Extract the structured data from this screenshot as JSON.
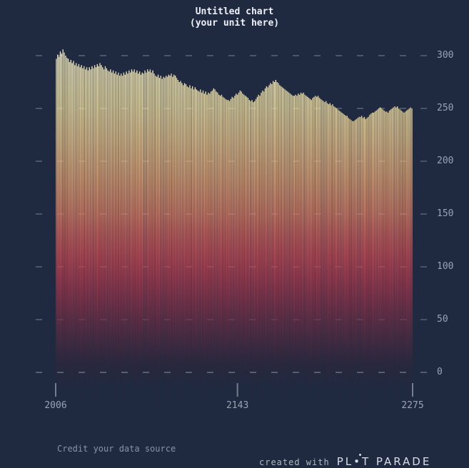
{
  "title": {
    "line1": "Untitled chart",
    "line2": "(your unit here)"
  },
  "colors": {
    "background": "#1f2940",
    "grid": "#97a0b2",
    "axis_text": "#9aa3b4",
    "title_text": "#edf1f7",
    "credit_text": "#8a93a4",
    "created_text": "#b0b8c6",
    "brand_text": "#d8dee8",
    "bar_top": "#f8f0c6",
    "bar_mid": "#c64a53",
    "bar_bottom": "#2a283c"
  },
  "y_axis": {
    "ticks": [
      300,
      250,
      200,
      150,
      100,
      50,
      0
    ]
  },
  "x_axis": {
    "tick_years": [
      2006,
      2143,
      2275
    ]
  },
  "footer": {
    "credit": "Credit your data source",
    "created_with": "created with",
    "brand": "PL•T PARADE"
  },
  "chart_data": {
    "type": "bar",
    "title": "Untitled chart",
    "subtitle": "(your unit here)",
    "xlabel": "",
    "ylabel": "",
    "x_start": 2006,
    "x_end": 2275,
    "y_ticks": [
      0,
      50,
      100,
      150,
      200,
      250,
      300
    ],
    "ylim_displayed": [
      0,
      300
    ],
    "grid": "dashed-horizontal",
    "legend": "none",
    "values": [
      297,
      301,
      299,
      304,
      302,
      306,
      303,
      300,
      298,
      297,
      294,
      296,
      293,
      295,
      291,
      293,
      290,
      292,
      289,
      291,
      288,
      290,
      287,
      289,
      286,
      289,
      287,
      290,
      288,
      291,
      289,
      292,
      290,
      293,
      291,
      289,
      287,
      290,
      288,
      286,
      285,
      287,
      284,
      286,
      283,
      285,
      282,
      284,
      281,
      283,
      281,
      284,
      282,
      285,
      283,
      286,
      284,
      287,
      285,
      287,
      284,
      286,
      283,
      285,
      282,
      284,
      283,
      286,
      284,
      287,
      285,
      287,
      284,
      286,
      283,
      281,
      280,
      282,
      279,
      281,
      278,
      280,
      279,
      281,
      280,
      282,
      281,
      283,
      280,
      282,
      281,
      279,
      277,
      275,
      276,
      274,
      272,
      274,
      273,
      271,
      270,
      272,
      269,
      271,
      268,
      270,
      268,
      267,
      266,
      268,
      265,
      267,
      264,
      266,
      263,
      265,
      264,
      266,
      267,
      269,
      268,
      266,
      265,
      263,
      262,
      263,
      261,
      260,
      259,
      258,
      258,
      257,
      259,
      261,
      260,
      262,
      264,
      263,
      265,
      267,
      266,
      264,
      263,
      262,
      261,
      260,
      258,
      257,
      258,
      256,
      257,
      259,
      261,
      263,
      262,
      265,
      267,
      266,
      269,
      271,
      270,
      272,
      274,
      273,
      276,
      275,
      277,
      275,
      274,
      272,
      271,
      270,
      269,
      268,
      267,
      266,
      265,
      264,
      263,
      262,
      262,
      263,
      262,
      264,
      263,
      265,
      264,
      265,
      263,
      262,
      261,
      260,
      259,
      258,
      260,
      261,
      262,
      261,
      262,
      260,
      259,
      258,
      257,
      256,
      257,
      255,
      254,
      255,
      253,
      254,
      252,
      251,
      250,
      249,
      248,
      247,
      246,
      245,
      244,
      243,
      243,
      241,
      240,
      239,
      238,
      238,
      239,
      240,
      241,
      242,
      242,
      243,
      241,
      242,
      240,
      241,
      242,
      244,
      245,
      246,
      246,
      247,
      248,
      249,
      250,
      251,
      250,
      249,
      248,
      247,
      247,
      246,
      248,
      249,
      250,
      251,
      252,
      251,
      252,
      250,
      249,
      248,
      247,
      246,
      247,
      248,
      249,
      250,
      251,
      250
    ],
    "lows": [
      -6,
      -12,
      -4,
      -9,
      -15,
      -5,
      -11,
      -34,
      -13,
      -3,
      -8,
      -14,
      -6,
      -28,
      -4,
      -12,
      -8,
      -5,
      -9,
      -41,
      -6,
      -12,
      -4,
      -9,
      -15,
      -5,
      -11,
      -25,
      -13,
      -3,
      -8,
      -37,
      -6,
      -10,
      -4,
      -12,
      -8,
      -5,
      -9,
      -7,
      -6,
      -12,
      -4,
      -9,
      -30,
      -5,
      -11,
      -7,
      -13,
      -3,
      -8,
      -14,
      -26,
      -10,
      -4,
      -12,
      -8,
      -5,
      -9,
      -7,
      -44,
      -12,
      -4,
      -9,
      -15,
      -5,
      -11,
      -7,
      -29,
      -3,
      -8,
      -14,
      -6,
      -10,
      -4,
      -12,
      -8,
      -35,
      -9,
      -7,
      -6,
      -12,
      -4,
      -9,
      -15,
      -27,
      -11,
      -7,
      -13,
      -3,
      -8,
      -14,
      -6,
      -39,
      -4,
      -12,
      -8,
      -5,
      -9,
      -7,
      -6,
      -31,
      -4,
      -9,
      -15,
      -5,
      -11,
      -7,
      -13,
      -3,
      -8,
      -14,
      -26,
      -10,
      -4,
      -12,
      -8,
      -5,
      -42,
      -7,
      -6,
      -12,
      -4,
      -9,
      -15,
      -5,
      -11,
      -28,
      -13,
      -3,
      -8,
      -14,
      -6,
      -10,
      -4,
      -12,
      -33,
      -5,
      -9,
      -7,
      -6,
      -12,
      -4,
      -9,
      -15,
      -5,
      -11,
      -7,
      -13,
      -27,
      -8,
      -14,
      -6,
      -10,
      -4,
      -38,
      -8,
      -5,
      -9,
      -7,
      -6,
      -12,
      -4,
      -25,
      -15,
      -5,
      -11,
      -7,
      -13,
      -3,
      -8,
      -14,
      -30,
      -10,
      -4,
      -12,
      -8,
      -5,
      -9,
      -7,
      -6,
      -12,
      -4,
      -9,
      -43,
      -5,
      -11,
      -7,
      -13,
      -3,
      -8,
      -14,
      -27,
      -10,
      -4,
      -12,
      -8,
      -5,
      -9,
      -34,
      -6,
      -12,
      -4,
      -9,
      -15,
      -5,
      -11,
      -29,
      -13,
      -3,
      -8,
      -14,
      -6,
      -10,
      -4,
      -12,
      -36,
      -5,
      -9,
      -7,
      -6,
      -12,
      -4,
      -9,
      -26,
      -5,
      -11,
      -7,
      -13,
      -3,
      -8,
      -14,
      -6,
      -40,
      -4,
      -12,
      -8,
      -5,
      -9,
      -7,
      -6,
      -28,
      -4,
      -9,
      -15,
      -5,
      -11,
      -7,
      -13,
      -3,
      -32,
      -14,
      -6,
      -10,
      -4,
      -12,
      -8,
      -5,
      -9,
      -27,
      -6,
      -12,
      -4,
      -9,
      -15,
      -5,
      -35,
      -7,
      -13,
      -3
    ],
    "gradient_stops": [
      {
        "v": 310,
        "color": "#faf4d4",
        "opacity": 1
      },
      {
        "v": 300,
        "color": "#f8f0c6",
        "opacity": 1
      },
      {
        "v": 270,
        "color": "#f5e7ae",
        "opacity": 1
      },
      {
        "v": 250,
        "color": "#f2e0a2",
        "opacity": 1
      },
      {
        "v": 218,
        "color": "#edc78b",
        "opacity": 1
      },
      {
        "v": 184,
        "color": "#e6a674",
        "opacity": 1
      },
      {
        "v": 150,
        "color": "#dc7f63",
        "opacity": 1
      },
      {
        "v": 130,
        "color": "#d2615a",
        "opacity": 1
      },
      {
        "v": 109,
        "color": "#c64a53",
        "opacity": 1
      },
      {
        "v": 89,
        "color": "#ae3b4e",
        "opacity": 1
      },
      {
        "v": 69,
        "color": "#8d3349",
        "opacity": 1
      },
      {
        "v": 49,
        "color": "#6b2e44",
        "opacity": 1
      },
      {
        "v": 28,
        "color": "#4a2a40",
        "opacity": 1
      },
      {
        "v": 8,
        "color": "#2e273b",
        "opacity": 0.95
      },
      {
        "v": 0,
        "color": "#2a283c",
        "opacity": 0.85
      },
      {
        "v": -20,
        "color": "#2a283c",
        "opacity": 0.4
      },
      {
        "v": -48,
        "color": "#2a283c",
        "opacity": 0
      }
    ]
  }
}
